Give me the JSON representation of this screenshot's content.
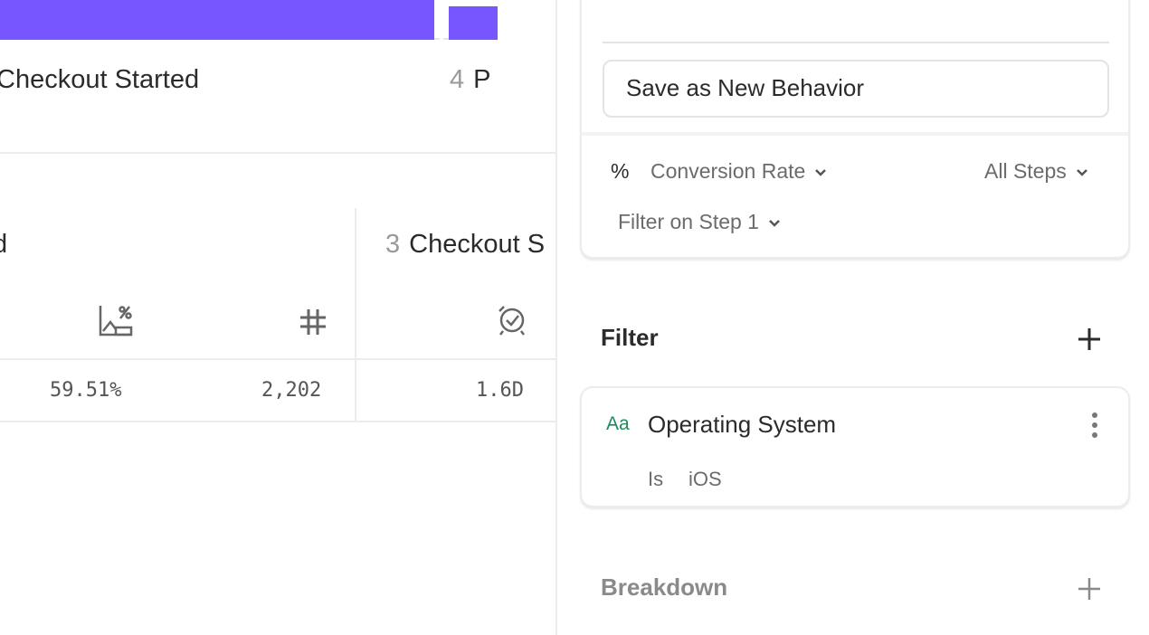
{
  "colors": {
    "bar": "#7856ff",
    "accent_text": "#1f8a5b"
  },
  "funnel": {
    "steps": [
      {
        "label": "Checkout Started"
      },
      {
        "number": "4",
        "label": "P"
      }
    ]
  },
  "table": {
    "column_prev_label": "d",
    "column_step3": {
      "number": "3",
      "label": "Checkout S"
    },
    "header_icons": [
      "conversion-rate-icon",
      "count-hash-icon",
      "time-to-convert-icon"
    ],
    "row": {
      "conversion": "59.51%",
      "count": "2,202",
      "time": "1.6D"
    }
  },
  "panel": {
    "save_behavior": "Save as New Behavior",
    "measure_symbol": "%",
    "measure": "Conversion Rate",
    "steps_select": "All Steps",
    "filter_step": "Filter on Step 1",
    "filter_title": "Filter",
    "filter_item": {
      "type_icon": "Aa",
      "property": "Operating System",
      "operator": "Is",
      "value": "iOS"
    },
    "breakdown_title": "Breakdown"
  }
}
